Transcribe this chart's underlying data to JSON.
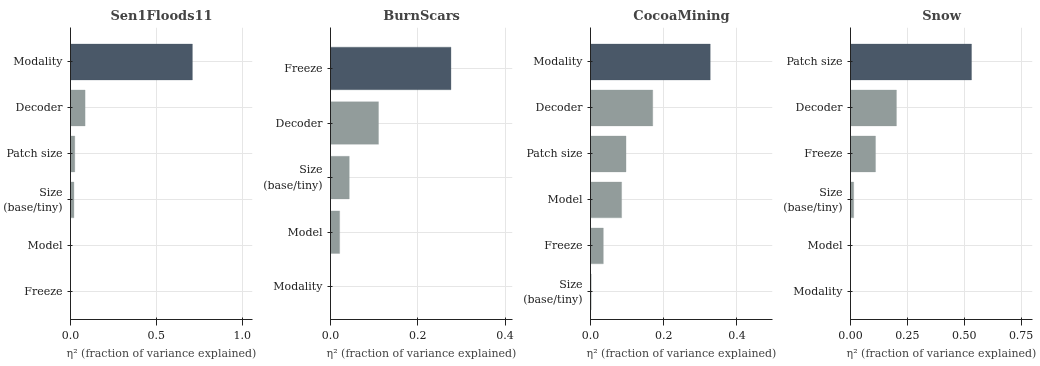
{
  "chart_data": [
    {
      "type": "bar",
      "orientation": "horizontal",
      "title": "Sen1Floods11",
      "xlabel": "η² (fraction of variance explained)",
      "categories": [
        "Modality",
        "Decoder",
        "Patch size",
        "Size (base/tiny)",
        "Model",
        "Freeze"
      ],
      "values": [
        0.71,
        0.085,
        0.025,
        0.02,
        0,
        0
      ],
      "colors": [
        "#4a5868",
        "#929c9b",
        "#929c9b",
        "#929c9b",
        "#929c9b",
        "#929c9b"
      ],
      "xlim": [
        0,
        1.06
      ],
      "xticks": [
        {
          "value": 0,
          "label": "0.0"
        },
        0.5,
        {
          "value": 1,
          "label": "1.0"
        }
      ],
      "grid": true
    },
    {
      "type": "bar",
      "orientation": "horizontal",
      "title": "BurnScars",
      "xlabel": "η² (fraction of variance explained)",
      "categories": [
        "Freeze",
        "Decoder",
        "Size (base/tiny)",
        "Model",
        "Modality"
      ],
      "values": [
        0.276,
        0.11,
        0.043,
        0.021,
        0
      ],
      "colors": [
        "#4a5868",
        "#929c9b",
        "#929c9b",
        "#929c9b",
        "#929c9b"
      ],
      "xlim": [
        0,
        0.417
      ],
      "xticks": [
        {
          "value": 0,
          "label": "0.0"
        },
        0.2,
        0.4
      ],
      "grid": true
    },
    {
      "type": "bar",
      "orientation": "horizontal",
      "title": "CocoaMining",
      "xlabel": "η² (fraction of variance explained)",
      "categories": [
        "Modality",
        "Decoder",
        "Patch size",
        "Model",
        "Freeze",
        "Size (base/tiny)"
      ],
      "values": [
        0.327,
        0.17,
        0.097,
        0.085,
        0.035,
        0.002
      ],
      "colors": [
        "#4a5868",
        "#929c9b",
        "#929c9b",
        "#929c9b",
        "#929c9b",
        "#929c9b"
      ],
      "xlim": [
        0,
        0.497
      ],
      "xticks": [
        {
          "value": 0,
          "label": "0.0"
        },
        0.2,
        0.4
      ],
      "grid": true
    },
    {
      "type": "bar",
      "orientation": "horizontal",
      "title": "Snow",
      "xlabel": "η² (fraction of variance explained)",
      "categories": [
        "Patch size",
        "Decoder",
        "Freeze",
        "Size (base/tiny)",
        "Model",
        "Modality"
      ],
      "values": [
        0.532,
        0.202,
        0.11,
        0.014,
        0,
        0
      ],
      "colors": [
        "#4a5868",
        "#929c9b",
        "#929c9b",
        "#929c9b",
        "#929c9b",
        "#929c9b"
      ],
      "xlim": [
        0,
        0.8
      ],
      "xticks": [
        {
          "value": 0,
          "label": "0.00"
        },
        {
          "value": 0.25,
          "label": "0.25"
        },
        {
          "value": 0.5,
          "label": "0.50"
        },
        {
          "value": 0.75,
          "label": "0.75"
        }
      ],
      "grid": true
    }
  ]
}
